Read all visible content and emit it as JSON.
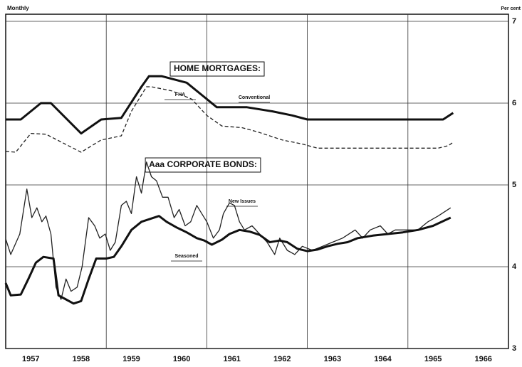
{
  "chart_data": {
    "type": "line",
    "frequency_label": "Monthly",
    "unit_label": "Per cent",
    "xlim": [
      1957,
      1967
    ],
    "ylim": [
      3,
      7
    ],
    "yticks": [
      3,
      4,
      5,
      6,
      7
    ],
    "x_grid": [
      1959,
      1961,
      1963,
      1965
    ],
    "xticks": [
      {
        "value": 1957.5,
        "label": "1957"
      },
      {
        "value": 1958.5,
        "label": "1958"
      },
      {
        "value": 1959.5,
        "label": "1959"
      },
      {
        "value": 1960.5,
        "label": "1960"
      },
      {
        "value": 1961.5,
        "label": "1961"
      },
      {
        "value": 1962.5,
        "label": "1962"
      },
      {
        "value": 1963.5,
        "label": "1963"
      },
      {
        "value": 1964.5,
        "label": "1964"
      },
      {
        "value": 1965.5,
        "label": "1965"
      },
      {
        "value": 1966.5,
        "label": "1966"
      }
    ],
    "grid": true,
    "annotations": [
      "HOME MORTGAGES:",
      "Aaa CORPORATE BONDS:"
    ],
    "series": [
      {
        "name": "Conventional",
        "color": "#111111",
        "width": 3,
        "dashed": false,
        "x": [
          1957.0,
          1957.3,
          1957.7,
          1957.9,
          1958.5,
          1958.9,
          1959.3,
          1959.7,
          1959.85,
          1960.1,
          1960.6,
          1960.9,
          1961.2,
          1961.8,
          1962.3,
          1962.7,
          1963.0,
          1965.7,
          1965.9
        ],
        "values": [
          5.8,
          5.8,
          6.0,
          6.0,
          5.63,
          5.8,
          5.82,
          6.2,
          6.33,
          6.33,
          6.25,
          6.1,
          5.95,
          5.95,
          5.9,
          5.85,
          5.8,
          5.8,
          5.88
        ]
      },
      {
        "name": "FHA",
        "color": "#222222",
        "width": 1.3,
        "dashed": true,
        "x": [
          1957.0,
          1957.2,
          1957.5,
          1957.8,
          1958.5,
          1958.9,
          1959.3,
          1959.5,
          1959.8,
          1959.9,
          1960.3,
          1960.7,
          1961.0,
          1961.3,
          1961.7,
          1962.0,
          1962.5,
          1962.9,
          1963.2,
          1965.6,
          1965.8,
          1965.9
        ],
        "values": [
          5.41,
          5.4,
          5.63,
          5.62,
          5.4,
          5.55,
          5.6,
          5.9,
          6.2,
          6.2,
          6.15,
          6.05,
          5.85,
          5.72,
          5.7,
          5.65,
          5.55,
          5.5,
          5.45,
          5.45,
          5.48,
          5.52
        ]
      },
      {
        "name": "New Issues",
        "color": "#222222",
        "width": 1.3,
        "dashed": false,
        "x": [
          1957.0,
          1957.1,
          1957.28,
          1957.42,
          1957.52,
          1957.62,
          1957.72,
          1957.8,
          1957.9,
          1958.0,
          1958.1,
          1958.2,
          1958.3,
          1958.42,
          1958.52,
          1958.65,
          1958.77,
          1958.87,
          1958.98,
          1959.08,
          1959.18,
          1959.3,
          1959.4,
          1959.5,
          1959.6,
          1959.7,
          1959.8,
          1959.9,
          1960.0,
          1960.12,
          1960.23,
          1960.35,
          1960.45,
          1960.57,
          1960.68,
          1960.8,
          1960.9,
          1961.0,
          1961.13,
          1961.25,
          1961.33,
          1961.45,
          1961.55,
          1961.65,
          1961.75,
          1961.9,
          1962.05,
          1962.2,
          1962.35,
          1962.45,
          1962.6,
          1962.75,
          1962.9,
          1963.1,
          1963.3,
          1963.5,
          1963.7,
          1963.95,
          1964.1,
          1964.25,
          1964.45,
          1964.6,
          1964.75,
          1964.95,
          1965.2,
          1965.4,
          1965.6,
          1965.85
        ],
        "values": [
          4.34,
          4.15,
          4.4,
          4.95,
          4.6,
          4.72,
          4.55,
          4.62,
          4.4,
          3.75,
          3.6,
          3.85,
          3.7,
          3.75,
          4.0,
          4.6,
          4.5,
          4.35,
          4.4,
          4.2,
          4.3,
          4.75,
          4.8,
          4.65,
          5.1,
          4.9,
          5.28,
          5.1,
          5.05,
          4.85,
          4.85,
          4.6,
          4.7,
          4.5,
          4.55,
          4.75,
          4.65,
          4.55,
          4.35,
          4.45,
          4.65,
          4.78,
          4.75,
          4.55,
          4.45,
          4.5,
          4.4,
          4.3,
          4.15,
          4.35,
          4.2,
          4.15,
          4.25,
          4.2,
          4.25,
          4.3,
          4.35,
          4.45,
          4.35,
          4.45,
          4.5,
          4.4,
          4.45,
          4.45,
          4.45,
          4.55,
          4.62,
          4.72
        ]
      },
      {
        "name": "Seasoned",
        "color": "#111111",
        "width": 3,
        "dashed": false,
        "x": [
          1957.0,
          1957.1,
          1957.3,
          1957.45,
          1957.6,
          1957.75,
          1957.95,
          1958.05,
          1958.2,
          1958.35,
          1958.5,
          1958.65,
          1958.8,
          1959.0,
          1959.15,
          1959.3,
          1959.5,
          1959.7,
          1959.85,
          1960.05,
          1960.2,
          1960.4,
          1960.6,
          1960.8,
          1960.95,
          1961.1,
          1961.3,
          1961.45,
          1961.65,
          1961.85,
          1962.05,
          1962.25,
          1962.45,
          1962.6,
          1962.8,
          1963.0,
          1963.2,
          1963.4,
          1963.6,
          1963.8,
          1964.0,
          1964.3,
          1964.6,
          1964.9,
          1965.2,
          1965.5,
          1965.85
        ],
        "values": [
          3.8,
          3.65,
          3.66,
          3.85,
          4.05,
          4.12,
          4.1,
          3.65,
          3.6,
          3.55,
          3.58,
          3.85,
          4.1,
          4.1,
          4.12,
          4.25,
          4.45,
          4.55,
          4.58,
          4.62,
          4.55,
          4.48,
          4.42,
          4.35,
          4.32,
          4.27,
          4.33,
          4.4,
          4.45,
          4.43,
          4.39,
          4.3,
          4.32,
          4.3,
          4.22,
          4.19,
          4.21,
          4.25,
          4.28,
          4.3,
          4.35,
          4.38,
          4.4,
          4.42,
          4.45,
          4.5,
          4.6
        ]
      }
    ]
  }
}
